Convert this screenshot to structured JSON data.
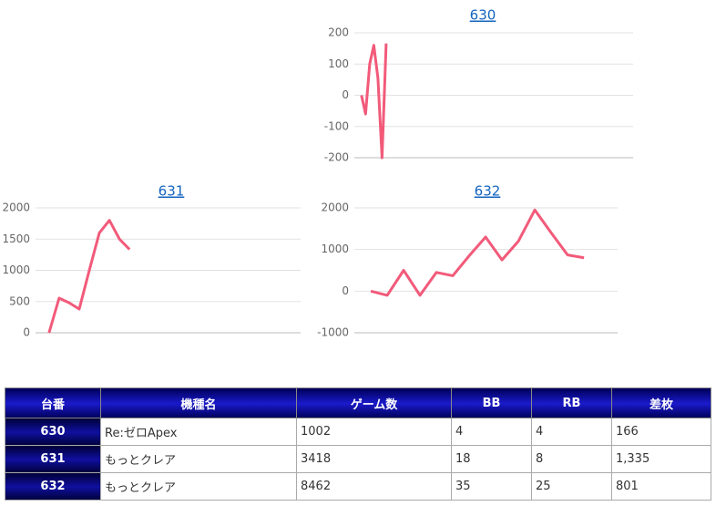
{
  "chart_data": [
    {
      "type": "line",
      "title": "630",
      "color": "#f25a7a",
      "x": [
        0,
        1,
        2,
        3,
        4,
        5,
        6
      ],
      "values": [
        0,
        -60,
        100,
        160,
        55,
        -200,
        166
      ],
      "xlim": [
        -0.4,
        66
      ],
      "ylim": [
        -200,
        200
      ],
      "yticks": [
        -200,
        -100,
        0,
        100,
        200
      ],
      "grid": true
    },
    {
      "type": "line",
      "title": "631",
      "color": "#f25a7a",
      "x": [
        0,
        1,
        2,
        3,
        4,
        5,
        6,
        7,
        8
      ],
      "values": [
        0,
        555,
        480,
        380,
        1000,
        1600,
        1800,
        1500,
        1335
      ],
      "xlim": [
        -0.8,
        25
      ],
      "ylim": [
        0,
        2000
      ],
      "yticks": [
        0,
        500,
        1000,
        1500,
        2000
      ],
      "grid": true
    },
    {
      "type": "line",
      "title": "632",
      "color": "#f25a7a",
      "x": [
        0,
        1,
        2,
        3,
        4,
        5,
        6,
        7,
        8,
        9,
        10,
        11,
        12,
        13
      ],
      "values": [
        0,
        -100,
        500,
        -100,
        450,
        370,
        850,
        1300,
        750,
        1200,
        1950,
        1400,
        870,
        801
      ],
      "xlim": [
        -0.67,
        15.05
      ],
      "ylim": [
        -1000,
        2000
      ],
      "yticks": [
        -1000,
        0,
        1000,
        2000
      ],
      "grid": true
    }
  ],
  "table": {
    "header": [
      "台番",
      "機種名",
      "ゲーム数",
      "BB",
      "RB",
      "差枚"
    ],
    "rows": [
      [
        "630",
        "Re:ゼロApex",
        "1002",
        "4",
        "4",
        "166"
      ],
      [
        "631",
        "もっとクレア",
        "3418",
        "18",
        "8",
        "1,335"
      ],
      [
        "632",
        "もっとクレア",
        "8462",
        "35",
        "25",
        "801"
      ]
    ]
  }
}
